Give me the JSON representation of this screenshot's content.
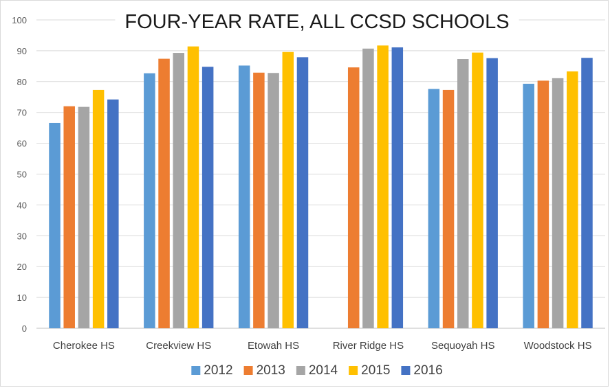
{
  "chart_data": {
    "type": "bar",
    "title": "FOUR-YEAR RATE, ALL CCSD SCHOOLS",
    "xlabel": "",
    "ylabel": "",
    "ylim": [
      0,
      100
    ],
    "yticks": [
      0,
      10,
      20,
      30,
      40,
      50,
      60,
      70,
      80,
      90,
      100
    ],
    "grid": true,
    "legend_position": "bottom",
    "categories": [
      "Cherokee HS",
      "Creekview HS",
      "Etowah HS",
      "River Ridge HS",
      "Sequoyah HS",
      "Woodstock HS"
    ],
    "series": [
      {
        "name": "2012",
        "color": "#5b9bd5",
        "values": [
          66.6,
          82.7,
          85.2,
          null,
          77.6,
          79.3
        ]
      },
      {
        "name": "2013",
        "color": "#ed7d31",
        "values": [
          72.0,
          87.4,
          82.9,
          84.6,
          77.3,
          80.3
        ]
      },
      {
        "name": "2014",
        "color": "#a5a5a5",
        "values": [
          71.8,
          89.3,
          82.8,
          90.7,
          87.3,
          81.1
        ]
      },
      {
        "name": "2015",
        "color": "#ffc000",
        "values": [
          77.3,
          91.4,
          89.6,
          91.7,
          89.4,
          83.3
        ]
      },
      {
        "name": "2016",
        "color": "#4472c4",
        "values": [
          74.2,
          84.8,
          87.9,
          91.1,
          87.6,
          87.7
        ]
      }
    ]
  }
}
